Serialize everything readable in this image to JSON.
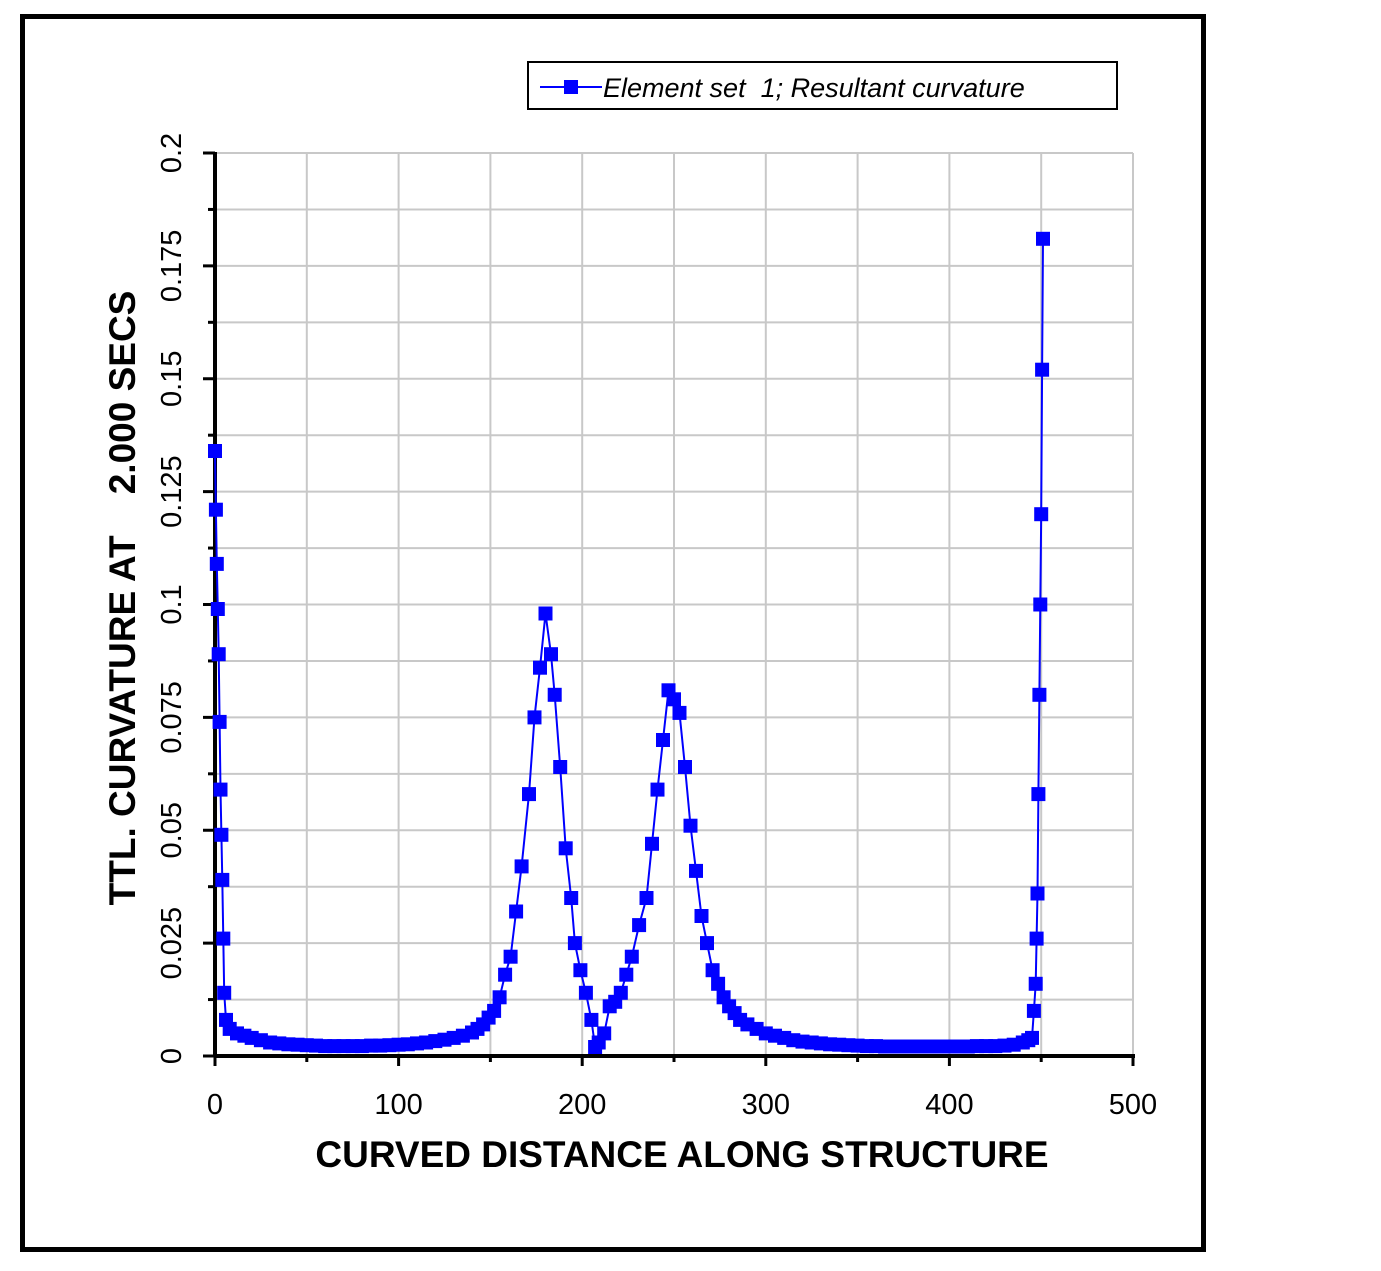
{
  "chart_data": {
    "type": "line",
    "xlabel": "CURVED DISTANCE ALONG STRUCTURE",
    "ylabel": "TTL. CURVATURE AT    2.000 SECS",
    "xlim": [
      0,
      500
    ],
    "ylim": [
      0,
      0.2
    ],
    "x_ticks": [
      "0",
      "100",
      "200",
      "300",
      "400",
      "500"
    ],
    "y_ticks": [
      "0",
      "0.025",
      "0.05",
      "0.075",
      "0.1",
      "0.125",
      "0.15",
      "0.175",
      "0.2"
    ],
    "grid": true,
    "legend_position": "top-right",
    "marker": "square",
    "colors": {
      "series": "#0000ff",
      "grid": "#c8c8c8",
      "axes": "#000000"
    },
    "series": [
      {
        "name": "Element set  1; Resultant curvature",
        "points": [
          [
            0,
            0.134
          ],
          [
            0.5,
            0.121
          ],
          [
            1,
            0.109
          ],
          [
            1.5,
            0.099
          ],
          [
            2,
            0.089
          ],
          [
            2.5,
            0.074
          ],
          [
            3,
            0.059
          ],
          [
            3.5,
            0.049
          ],
          [
            4,
            0.039
          ],
          [
            4.5,
            0.026
          ],
          [
            5,
            0.014
          ],
          [
            6,
            0.008
          ],
          [
            8,
            0.006
          ],
          [
            12,
            0.005
          ],
          [
            16,
            0.0045
          ],
          [
            20,
            0.004
          ],
          [
            25,
            0.0035
          ],
          [
            30,
            0.003
          ],
          [
            35,
            0.0028
          ],
          [
            40,
            0.0026
          ],
          [
            45,
            0.0025
          ],
          [
            50,
            0.0024
          ],
          [
            55,
            0.0023
          ],
          [
            60,
            0.0022
          ],
          [
            65,
            0.0022
          ],
          [
            70,
            0.0022
          ],
          [
            75,
            0.0022
          ],
          [
            80,
            0.0022
          ],
          [
            85,
            0.0023
          ],
          [
            90,
            0.0023
          ],
          [
            95,
            0.0024
          ],
          [
            100,
            0.0025
          ],
          [
            105,
            0.0026
          ],
          [
            110,
            0.0028
          ],
          [
            115,
            0.003
          ],
          [
            120,
            0.0033
          ],
          [
            125,
            0.0036
          ],
          [
            130,
            0.004
          ],
          [
            135,
            0.0045
          ],
          [
            140,
            0.0052
          ],
          [
            143,
            0.006
          ],
          [
            146,
            0.007
          ],
          [
            149,
            0.0085
          ],
          [
            152,
            0.01
          ],
          [
            155,
            0.013
          ],
          [
            158,
            0.018
          ],
          [
            161,
            0.022
          ],
          [
            164,
            0.032
          ],
          [
            167,
            0.042
          ],
          [
            171,
            0.058
          ],
          [
            174,
            0.075
          ],
          [
            177,
            0.086
          ],
          [
            180,
            0.098
          ],
          [
            183,
            0.089
          ],
          [
            185,
            0.08
          ],
          [
            188,
            0.064
          ],
          [
            191,
            0.046
          ],
          [
            194,
            0.035
          ],
          [
            196,
            0.025
          ],
          [
            199,
            0.019
          ],
          [
            202,
            0.014
          ],
          [
            205,
            0.008
          ],
          [
            207,
            0.002
          ],
          [
            209,
            0.003
          ],
          [
            212,
            0.005
          ],
          [
            215,
            0.011
          ],
          [
            218,
            0.012
          ],
          [
            221,
            0.014
          ],
          [
            224,
            0.018
          ],
          [
            227,
            0.022
          ],
          [
            231,
            0.029
          ],
          [
            235,
            0.035
          ],
          [
            238,
            0.047
          ],
          [
            241,
            0.059
          ],
          [
            244,
            0.07
          ],
          [
            247,
            0.081
          ],
          [
            250,
            0.079
          ],
          [
            253,
            0.076
          ],
          [
            256,
            0.064
          ],
          [
            259,
            0.051
          ],
          [
            262,
            0.041
          ],
          [
            265,
            0.031
          ],
          [
            268,
            0.025
          ],
          [
            271,
            0.019
          ],
          [
            274,
            0.016
          ],
          [
            277,
            0.013
          ],
          [
            280,
            0.011
          ],
          [
            283,
            0.0095
          ],
          [
            286,
            0.008
          ],
          [
            290,
            0.007
          ],
          [
            295,
            0.006
          ],
          [
            300,
            0.005
          ],
          [
            305,
            0.0045
          ],
          [
            310,
            0.004
          ],
          [
            315,
            0.0035
          ],
          [
            320,
            0.0032
          ],
          [
            325,
            0.003
          ],
          [
            330,
            0.0028
          ],
          [
            335,
            0.0026
          ],
          [
            340,
            0.0025
          ],
          [
            345,
            0.0024
          ],
          [
            350,
            0.0023
          ],
          [
            355,
            0.0022
          ],
          [
            360,
            0.0022
          ],
          [
            365,
            0.0021
          ],
          [
            370,
            0.0021
          ],
          [
            375,
            0.0021
          ],
          [
            380,
            0.0021
          ],
          [
            385,
            0.0021
          ],
          [
            390,
            0.0021
          ],
          [
            395,
            0.0021
          ],
          [
            400,
            0.0021
          ],
          [
            405,
            0.0021
          ],
          [
            410,
            0.0021
          ],
          [
            415,
            0.0022
          ],
          [
            420,
            0.0022
          ],
          [
            425,
            0.0022
          ],
          [
            430,
            0.0023
          ],
          [
            435,
            0.0025
          ],
          [
            440,
            0.003
          ],
          [
            443,
            0.0035
          ],
          [
            445,
            0.004
          ],
          [
            446,
            0.01
          ],
          [
            447,
            0.016
          ],
          [
            447.5,
            0.026
          ],
          [
            448,
            0.036
          ],
          [
            448.5,
            0.058
          ],
          [
            449,
            0.08
          ],
          [
            449.5,
            0.1
          ],
          [
            450,
            0.12
          ],
          [
            450.5,
            0.152
          ],
          [
            451,
            0.181
          ]
        ]
      }
    ]
  }
}
